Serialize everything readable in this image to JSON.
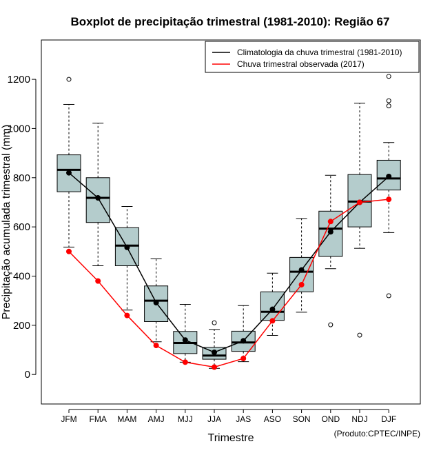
{
  "chart_data": {
    "type": "boxplot",
    "title": "Boxplot de precipitação trimestral (1981-2010): Região 67",
    "xlabel": "Trimestre",
    "ylabel": "Precipitação acumulada trimestral (mm)",
    "ylim": [
      -120,
      1360
    ],
    "yticks": [
      0,
      200,
      400,
      600,
      800,
      1000,
      1200
    ],
    "categories": [
      "JFM",
      "FMA",
      "MAM",
      "AMJ",
      "MJJ",
      "JJA",
      "JAS",
      "ASO",
      "SON",
      "OND",
      "NDJ",
      "DJF"
    ],
    "boxes": [
      {
        "whisker_low": 518,
        "q1": 743,
        "median": 832,
        "q3": 893,
        "whisker_high": 1098,
        "outliers": [
          1200
        ]
      },
      {
        "whisker_low": 442,
        "q1": 618,
        "median": 718,
        "q3": 800,
        "whisker_high": 1022,
        "outliers": []
      },
      {
        "whisker_low": 262,
        "q1": 442,
        "median": 524,
        "q3": 597,
        "whisker_high": 683,
        "outliers": []
      },
      {
        "whisker_low": 133,
        "q1": 215,
        "median": 300,
        "q3": 360,
        "whisker_high": 470,
        "outliers": []
      },
      {
        "whisker_low": 50,
        "q1": 85,
        "median": 128,
        "q3": 175,
        "whisker_high": 285,
        "outliers": []
      },
      {
        "whisker_low": 25,
        "q1": 62,
        "median": 77,
        "q3": 110,
        "whisker_high": 183,
        "outliers": [
          210
        ]
      },
      {
        "whisker_low": 52,
        "q1": 94,
        "median": 130,
        "q3": 176,
        "whisker_high": 280,
        "outliers": []
      },
      {
        "whisker_low": 159,
        "q1": 220,
        "median": 255,
        "q3": 336,
        "whisker_high": 412,
        "outliers": []
      },
      {
        "whisker_low": 253,
        "q1": 336,
        "median": 418,
        "q3": 476,
        "whisker_high": 634,
        "outliers": []
      },
      {
        "whisker_low": 430,
        "q1": 480,
        "median": 593,
        "q3": 664,
        "whisker_high": 810,
        "outliers": [
          202
        ]
      },
      {
        "whisker_low": 513,
        "q1": 600,
        "median": 703,
        "q3": 813,
        "whisker_high": 1103,
        "outliers": [
          160
        ]
      },
      {
        "whisker_low": 577,
        "q1": 750,
        "median": 797,
        "q3": 871,
        "whisker_high": 943,
        "outliers": [
          320,
          1092,
          1113,
          1212
        ]
      }
    ],
    "series": [
      {
        "name": "Climatologia da chuva trimestral (1981-2010)",
        "color": "#000000",
        "values": [
          820,
          718,
          517,
          292,
          140,
          90,
          137,
          265,
          425,
          580,
          700,
          805
        ]
      },
      {
        "name": "Chuva trimestral observada (2017)",
        "color": "#ff0000",
        "values": [
          500,
          380,
          240,
          118,
          50,
          30,
          65,
          218,
          365,
          622,
          700,
          712
        ]
      }
    ],
    "legend_position": "top-right",
    "box_fill": "#b4cccc"
  },
  "credit": "(Produto:CPTEC/INPE)"
}
